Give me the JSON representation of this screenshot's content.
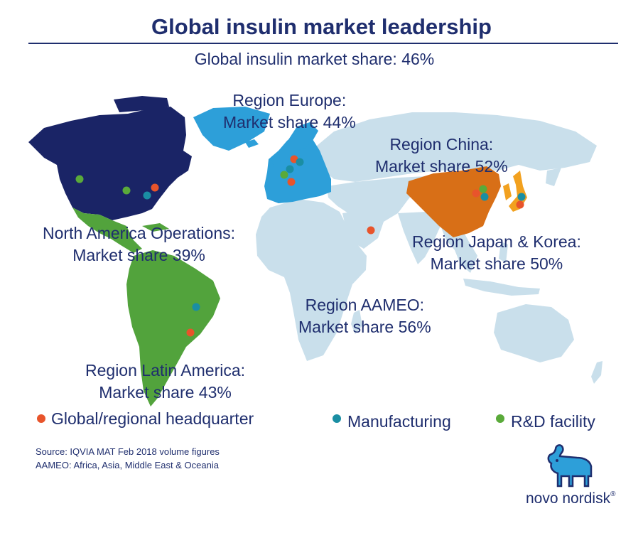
{
  "title": "Global insulin market leadership",
  "subtitle": "Global insulin market share: 46%",
  "regions": {
    "europe": {
      "line1": "Region Europe:",
      "line2": "Market share 44%"
    },
    "china": {
      "line1": "Region China:",
      "line2": "Market share 52%"
    },
    "north_america": {
      "line1": "North America Operations:",
      "line2": "Market share 39%"
    },
    "japan_korea": {
      "line1": "Region Japan & Korea:",
      "line2": "Market share 50%"
    },
    "aameo": {
      "line1": "Region AAMEO:",
      "line2": "Market share 56%"
    },
    "latin_america": {
      "line1": "Region Latin America:",
      "line2": "Market share 43%"
    }
  },
  "legend": {
    "hq": "Global/regional headquarter",
    "manufacturing": "Manufacturing",
    "rnd": "R&D facility"
  },
  "source": {
    "line1": "Source: IQVIA MAT Feb 2018 volume figures",
    "line2": "AAMEO: Africa, Asia, Middle East & Oceania"
  },
  "brand": "novo nordisk",
  "colors": {
    "north_america": "#1a2466",
    "latin_america": "#52a33c",
    "europe": "#2d9fd9",
    "china": "#d86f17",
    "japan_korea": "#f2a11f",
    "aameo": "#c9dfeb",
    "hq_dot": "#e8542b",
    "manufacturing_dot": "#1a8ea3",
    "rnd_dot": "#5aaa3a"
  }
}
